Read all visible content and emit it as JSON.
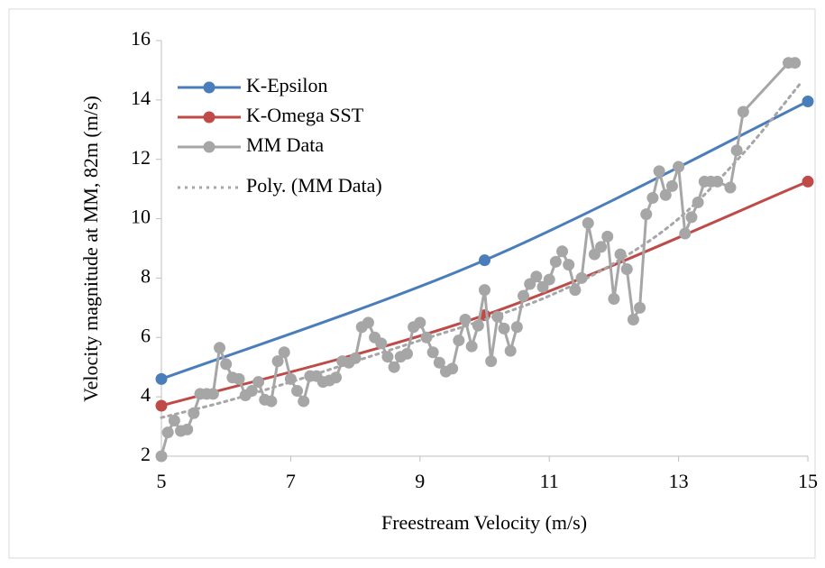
{
  "chart_data": {
    "type": "line",
    "xlabel": "Freestream Velocity (m/s)",
    "ylabel": "Velocity magnitude at MM, 82m (m/s)",
    "xlim": [
      5,
      15
    ],
    "xticks": [
      5,
      7,
      9,
      11,
      13,
      15
    ],
    "ylim": [
      2,
      16
    ],
    "yticks": [
      2,
      4,
      6,
      8,
      10,
      12,
      14,
      16
    ],
    "grid": false,
    "legend": "top-left",
    "series": [
      {
        "name": "K-Epsilon",
        "color": "#4a7ebb",
        "smooth": true,
        "marker": true,
        "line_style": "solid",
        "x": [
          5,
          10,
          15
        ],
        "values": [
          4.6,
          8.6,
          13.95
        ]
      },
      {
        "name": "K-Omega SST",
        "color": "#be4b48",
        "smooth": true,
        "marker": true,
        "line_style": "solid",
        "x": [
          5,
          10,
          15
        ],
        "values": [
          3.7,
          6.75,
          11.25
        ]
      },
      {
        "name": "MM Data",
        "color": "#a6a6a6",
        "smooth": false,
        "marker": true,
        "line_style": "solid",
        "x": [
          5.0,
          5.1,
          5.2,
          5.3,
          5.4,
          5.5,
          5.6,
          5.7,
          5.8,
          5.9,
          6.0,
          6.1,
          6.2,
          6.3,
          6.4,
          6.5,
          6.6,
          6.7,
          6.8,
          6.9,
          7.0,
          7.1,
          7.2,
          7.3,
          7.4,
          7.5,
          7.6,
          7.7,
          7.8,
          7.9,
          8.0,
          8.1,
          8.2,
          8.3,
          8.4,
          8.5,
          8.6,
          8.7,
          8.8,
          8.9,
          9.0,
          9.1,
          9.2,
          9.3,
          9.4,
          9.5,
          9.6,
          9.7,
          9.8,
          9.9,
          10.0,
          10.1,
          10.2,
          10.3,
          10.4,
          10.5,
          10.6,
          10.7,
          10.8,
          10.9,
          11.0,
          11.1,
          11.2,
          11.3,
          11.4,
          11.5,
          11.6,
          11.7,
          11.8,
          11.9,
          12.0,
          12.1,
          12.2,
          12.3,
          12.4,
          12.5,
          12.6,
          12.7,
          12.8,
          12.9,
          13.0,
          13.1,
          13.2,
          13.3,
          13.4,
          13.5,
          13.6,
          13.8,
          13.9,
          14.0,
          14.7,
          14.8
        ],
        "values": [
          2.0,
          2.8,
          3.2,
          2.85,
          2.9,
          3.45,
          4.1,
          4.1,
          4.1,
          5.65,
          5.1,
          4.65,
          4.6,
          4.05,
          4.2,
          4.5,
          3.9,
          3.85,
          5.2,
          5.5,
          4.6,
          4.2,
          3.85,
          4.7,
          4.7,
          4.5,
          4.55,
          4.65,
          5.2,
          5.15,
          5.3,
          6.35,
          6.5,
          6.0,
          5.8,
          5.35,
          5.0,
          5.35,
          5.45,
          6.35,
          6.5,
          6.0,
          5.5,
          5.15,
          4.85,
          4.95,
          5.9,
          6.6,
          5.7,
          6.4,
          7.6,
          5.2,
          6.7,
          6.3,
          5.55,
          6.35,
          7.4,
          7.8,
          8.05,
          7.7,
          7.95,
          8.55,
          8.9,
          8.45,
          7.6,
          8.0,
          9.85,
          8.8,
          9.05,
          9.4,
          7.3,
          8.8,
          8.3,
          6.6,
          7.0,
          10.15,
          10.7,
          11.6,
          10.8,
          11.1,
          11.75,
          9.5,
          10.05,
          10.55,
          11.25,
          11.25,
          11.25,
          11.05,
          12.3,
          13.6,
          15.25,
          15.25
        ]
      },
      {
        "name": "Poly. (MM Data)",
        "color": "#a6a6a6",
        "smooth": true,
        "marker": false,
        "line_style": "dotted",
        "x": [
          5,
          6,
          7,
          8,
          9,
          10,
          11,
          12,
          13,
          14,
          14.9
        ],
        "values": [
          3.3,
          3.85,
          4.5,
          5.2,
          5.9,
          6.6,
          7.4,
          8.5,
          10.0,
          12.2,
          14.6
        ]
      }
    ]
  }
}
